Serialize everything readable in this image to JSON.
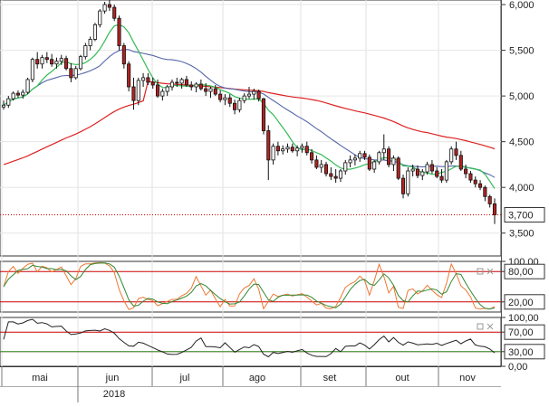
{
  "chart_data": {
    "type": "candlestick",
    "title": "",
    "colors": {
      "candle_up": "#ffffff",
      "candle_down": "#b22222",
      "ma_short": "#33bb55",
      "ma_medium": "#5566aa",
      "ma_long": "#dd2222",
      "stoch_k": "#ee7733",
      "stoch_d": "#338833",
      "rsi_line": "#222222",
      "ref_line": "#cc0000"
    },
    "x_axis": {
      "months": [
        "mai",
        "jun",
        "jul",
        "ago",
        "set",
        "out",
        "nov"
      ],
      "year_label": "2018",
      "range": [
        0,
        162
      ]
    },
    "price_panel": {
      "y_ticks": [
        "6,000",
        "5,500",
        "5,000",
        "4,500",
        "4,000",
        "3,500"
      ],
      "ylim": [
        3250,
        6050
      ],
      "last_price": 3.7,
      "last_price_label": "3,700",
      "candles": [
        [
          4.88,
          4.95,
          4.85,
          4.9
        ],
        [
          4.9,
          5.0,
          4.87,
          4.97
        ],
        [
          4.97,
          5.05,
          4.95,
          5.03
        ],
        [
          5.03,
          5.06,
          4.98,
          5.01
        ],
        [
          5.01,
          5.07,
          4.97,
          5.04
        ],
        [
          5.04,
          5.2,
          5.02,
          5.18
        ],
        [
          5.18,
          5.42,
          5.15,
          5.4
        ],
        [
          5.4,
          5.48,
          5.3,
          5.35
        ],
        [
          5.35,
          5.45,
          5.3,
          5.42
        ],
        [
          5.42,
          5.48,
          5.36,
          5.4
        ],
        [
          5.4,
          5.46,
          5.32,
          5.35
        ],
        [
          5.35,
          5.42,
          5.3,
          5.38
        ],
        [
          5.38,
          5.45,
          5.34,
          5.41
        ],
        [
          5.41,
          5.44,
          5.28,
          5.3
        ],
        [
          5.3,
          5.36,
          5.15,
          5.2
        ],
        [
          5.2,
          5.33,
          5.18,
          5.3
        ],
        [
          5.3,
          5.45,
          5.28,
          5.43
        ],
        [
          5.43,
          5.58,
          5.4,
          5.55
        ],
        [
          5.55,
          5.65,
          5.5,
          5.62
        ],
        [
          5.62,
          5.8,
          5.6,
          5.78
        ],
        [
          5.78,
          5.95,
          5.75,
          5.93
        ],
        [
          5.93,
          6.03,
          5.9,
          6.0
        ],
        [
          6.0,
          6.05,
          5.93,
          5.97
        ],
        [
          5.97,
          6.0,
          5.82,
          5.85
        ],
        [
          5.85,
          5.88,
          5.5,
          5.55
        ],
        [
          5.55,
          5.58,
          5.3,
          5.35
        ],
        [
          5.35,
          5.38,
          5.05,
          5.1
        ],
        [
          5.1,
          5.2,
          4.85,
          4.95
        ],
        [
          4.95,
          5.2,
          4.9,
          5.17
        ],
        [
          5.17,
          5.25,
          5.1,
          5.2
        ],
        [
          5.2,
          5.25,
          5.12,
          5.15
        ],
        [
          5.15,
          5.2,
          5.08,
          5.12
        ],
        [
          5.12,
          5.18,
          4.98,
          5.0
        ],
        [
          5.0,
          5.08,
          4.95,
          5.05
        ],
        [
          5.05,
          5.12,
          5.0,
          5.1
        ],
        [
          5.1,
          5.18,
          5.06,
          5.15
        ],
        [
          5.15,
          5.2,
          5.1,
          5.14
        ],
        [
          5.14,
          5.2,
          5.08,
          5.18
        ],
        [
          5.18,
          5.22,
          5.1,
          5.12
        ],
        [
          5.12,
          5.16,
          5.06,
          5.1
        ],
        [
          5.1,
          5.15,
          5.04,
          5.13
        ],
        [
          5.13,
          5.18,
          5.06,
          5.08
        ],
        [
          5.08,
          5.14,
          5.0,
          5.05
        ],
        [
          5.05,
          5.1,
          4.98,
          5.08
        ],
        [
          5.08,
          5.12,
          5.0,
          5.02
        ],
        [
          5.02,
          5.06,
          4.93,
          4.96
        ],
        [
          4.96,
          5.02,
          4.9,
          4.98
        ],
        [
          4.98,
          5.02,
          4.88,
          4.92
        ],
        [
          4.92,
          4.96,
          4.8,
          4.85
        ],
        [
          4.85,
          4.98,
          4.82,
          4.95
        ],
        [
          4.95,
          5.03,
          4.92,
          5.0
        ],
        [
          5.0,
          5.1,
          4.97,
          5.02
        ],
        [
          5.02,
          5.08,
          4.96,
          5.05
        ],
        [
          5.05,
          5.07,
          4.94,
          4.97
        ],
        [
          4.97,
          4.98,
          4.58,
          4.62
        ],
        [
          4.62,
          4.68,
          4.08,
          4.3
        ],
        [
          4.3,
          4.48,
          4.25,
          4.45
        ],
        [
          4.45,
          4.5,
          4.35,
          4.4
        ],
        [
          4.4,
          4.46,
          4.36,
          4.42
        ],
        [
          4.42,
          4.48,
          4.38,
          4.44
        ],
        [
          4.44,
          4.48,
          4.38,
          4.4
        ],
        [
          4.4,
          4.46,
          4.34,
          4.43
        ],
        [
          4.43,
          4.48,
          4.38,
          4.45
        ],
        [
          4.45,
          4.5,
          4.35,
          4.38
        ],
        [
          4.38,
          4.42,
          4.26,
          4.3
        ],
        [
          4.3,
          4.35,
          4.2,
          4.22
        ],
        [
          4.22,
          4.3,
          4.16,
          4.25
        ],
        [
          4.25,
          4.28,
          4.12,
          4.15
        ],
        [
          4.15,
          4.22,
          4.08,
          4.12
        ],
        [
          4.12,
          4.2,
          4.05,
          4.1
        ],
        [
          4.1,
          4.2,
          4.06,
          4.18
        ],
        [
          4.18,
          4.3,
          4.14,
          4.27
        ],
        [
          4.27,
          4.35,
          4.22,
          4.3
        ],
        [
          4.3,
          4.36,
          4.24,
          4.32
        ],
        [
          4.32,
          4.4,
          4.28,
          4.37
        ],
        [
          4.37,
          4.4,
          4.3,
          4.33
        ],
        [
          4.33,
          4.36,
          4.18,
          4.2
        ],
        [
          4.2,
          4.3,
          4.16,
          4.28
        ],
        [
          4.28,
          4.4,
          4.25,
          4.38
        ],
        [
          4.38,
          4.58,
          4.3,
          4.42
        ],
        [
          4.42,
          4.45,
          4.22,
          4.25
        ],
        [
          4.25,
          4.35,
          4.18,
          4.32
        ],
        [
          4.32,
          4.34,
          4.08,
          4.1
        ],
        [
          4.1,
          4.14,
          3.88,
          3.93
        ],
        [
          3.93,
          4.22,
          3.9,
          4.18
        ],
        [
          4.18,
          4.25,
          4.12,
          4.2
        ],
        [
          4.2,
          4.24,
          4.1,
          4.13
        ],
        [
          4.13,
          4.2,
          4.08,
          4.17
        ],
        [
          4.17,
          4.28,
          4.14,
          4.25
        ],
        [
          4.25,
          4.3,
          4.15,
          4.18
        ],
        [
          4.18,
          4.22,
          4.1,
          4.12
        ],
        [
          4.12,
          4.2,
          4.05,
          4.08
        ],
        [
          4.08,
          4.3,
          4.05,
          4.28
        ],
        [
          4.28,
          4.45,
          4.25,
          4.42
        ],
        [
          4.42,
          4.5,
          4.3,
          4.35
        ],
        [
          4.35,
          4.4,
          4.18,
          4.2
        ],
        [
          4.2,
          4.25,
          4.1,
          4.15
        ],
        [
          4.15,
          4.18,
          4.05,
          4.08
        ],
        [
          4.08,
          4.12,
          4.0,
          4.04
        ],
        [
          4.04,
          4.08,
          3.97,
          4.0
        ],
        [
          4.0,
          4.02,
          3.85,
          3.9
        ],
        [
          3.9,
          3.92,
          3.78,
          3.82
        ],
        [
          3.82,
          3.88,
          3.6,
          3.7
        ]
      ]
    },
    "stochastic_panel": {
      "y_ticks": [
        "100,00",
        "80,00",
        "20,00"
      ],
      "ylim": [
        0,
        100
      ],
      "levels": [
        80,
        20
      ]
    },
    "rsi_panel": {
      "y_ticks": [
        "100,00",
        "70,00",
        "30,00",
        "0,00"
      ],
      "ylim": [
        0,
        100
      ],
      "levels": [
        70,
        30
      ]
    }
  }
}
